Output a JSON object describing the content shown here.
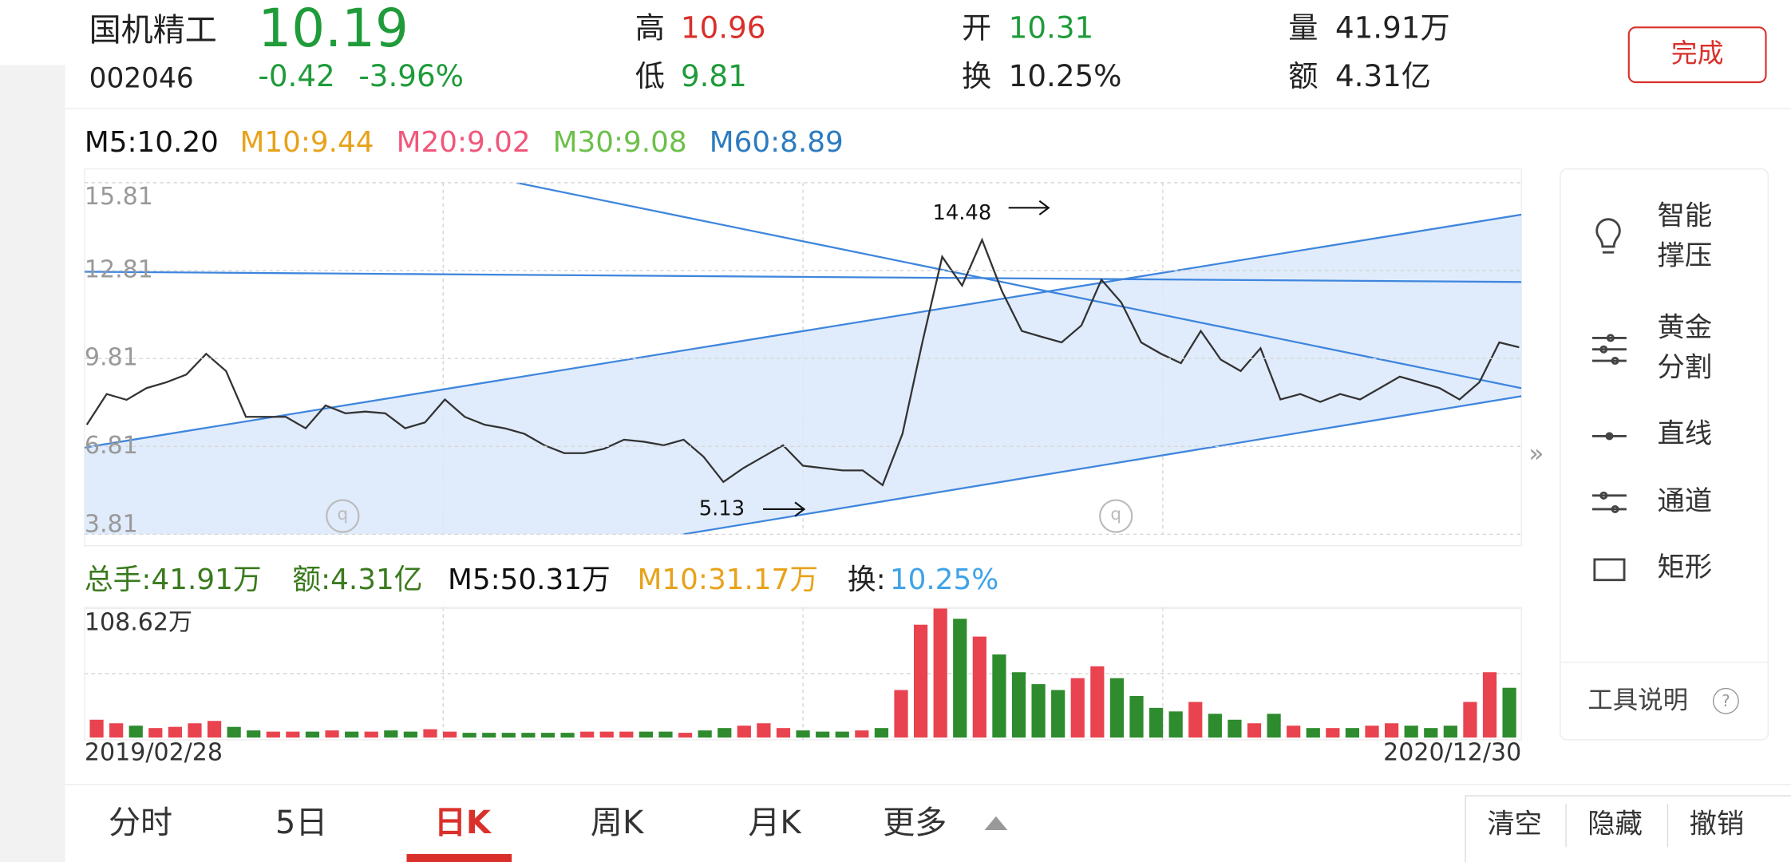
{
  "header": {
    "name": "国机精工",
    "code": "002046",
    "price": "10.19",
    "change": "-0.42",
    "change_pct": "-3.96%",
    "high_label": "高",
    "high": "10.96",
    "low_label": "低",
    "low": "9.81",
    "open_label": "开",
    "open": "10.31",
    "turnover_label": "换",
    "turnover": "10.25%",
    "volume_label": "量",
    "volume": "41.91万",
    "amount_label": "额",
    "amount": "4.31亿",
    "done_button": "完成"
  },
  "ma_legend": [
    {
      "text": "M5:10.20",
      "color": "#111111"
    },
    {
      "text": "M10:9.44",
      "color": "#e8a21a"
    },
    {
      "text": "M20:9.02",
      "color": "#f0577a"
    },
    {
      "text": "M30:9.08",
      "color": "#6cc04a"
    },
    {
      "text": "M60:8.89",
      "color": "#2d7bbf"
    }
  ],
  "volume_stats": [
    {
      "text": "总手:41.91万",
      "color": "#3a7a1e"
    },
    {
      "text": "额:4.31亿",
      "color": "#3a7a1e"
    },
    {
      "text": "M5:50.31万",
      "color": "#111111"
    },
    {
      "text": "M10:31.17万",
      "color": "#e8a21a"
    },
    {
      "text": "换:",
      "color": "#222222"
    },
    {
      "text": "10.25%",
      "color": "#3ea3e8"
    }
  ],
  "annotations": [
    "14.48",
    "5.13"
  ],
  "chart_data": [
    {
      "type": "line",
      "color": "#333333",
      "ylim": [
        3.81,
        15.81
      ],
      "yticks": [
        15.81,
        12.81,
        9.81,
        6.81,
        3.81
      ],
      "grid": true,
      "values": [
        7.55,
        8.6,
        8.4,
        8.8,
        9.0,
        9.26,
        9.97,
        9.38,
        7.82,
        7.82,
        7.82,
        7.43,
        8.21,
        7.94,
        8.0,
        7.94,
        7.43,
        7.63,
        8.41,
        7.82,
        7.55,
        7.43,
        7.24,
        6.85,
        6.58,
        6.58,
        6.73,
        7.04,
        6.97,
        6.85,
        7.04,
        6.46,
        5.6,
        6.07,
        6.46,
        6.85,
        6.15,
        6.07,
        5.99,
        5.99,
        5.49,
        7.24,
        10.36,
        13.28,
        12.3,
        13.86,
        12.11,
        10.75,
        10.55,
        10.36,
        10.94,
        12.5,
        11.72,
        10.36,
        9.97,
        9.65,
        10.75,
        9.77,
        9.38,
        10.16,
        8.41,
        8.6,
        8.33,
        8.6,
        8.41,
        8.8,
        9.19,
        9.0,
        8.8,
        8.41,
        9.0,
        10.36,
        10.19
      ]
    },
    {
      "type": "bar",
      "up_color": "#e8434f",
      "down_color": "#2e8b2e",
      "ylim": [
        0,
        108.62
      ],
      "yticks": [
        {
          "value": 108.62,
          "label": "108.62万"
        }
      ],
      "categories": [
        "2019/02/28",
        null,
        null,
        null,
        null,
        null,
        null,
        null,
        null,
        null,
        null,
        null,
        null,
        null,
        null,
        null,
        null,
        null,
        null,
        null,
        null,
        null,
        null,
        null,
        null,
        null,
        null,
        null,
        null,
        null,
        null,
        null,
        null,
        null,
        null,
        null,
        null,
        null,
        null,
        null,
        null,
        null,
        null,
        null,
        null,
        null,
        null,
        null,
        null,
        null,
        null,
        null,
        null,
        null,
        null,
        null,
        null,
        null,
        null,
        null,
        null,
        null,
        null,
        null,
        null,
        null,
        null,
        null,
        null,
        null,
        null,
        null,
        "2020/12/30"
      ],
      "values": [
        15,
        12,
        10,
        8,
        9,
        12,
        14,
        9,
        6,
        5,
        5,
        5,
        6,
        5,
        5,
        6,
        5,
        7,
        5,
        4,
        4,
        4,
        4,
        4,
        4,
        5,
        5,
        5,
        5,
        5,
        4,
        6,
        8,
        10,
        12,
        8,
        6,
        5,
        5,
        6,
        8,
        40,
        95,
        108.62,
        100,
        85,
        70,
        55,
        45,
        40,
        50,
        60,
        50,
        35,
        25,
        22,
        30,
        20,
        15,
        12,
        20,
        10,
        8,
        8,
        8,
        10,
        12,
        10,
        8,
        10,
        30,
        55,
        41.91
      ]
    }
  ],
  "tools": [
    {
      "lines": [
        "智能",
        "撑压"
      ]
    },
    {
      "lines": [
        "黄金",
        "分割"
      ]
    },
    {
      "lines": [
        "直线"
      ]
    },
    {
      "lines": [
        "通道"
      ]
    },
    {
      "lines": [
        "矩形"
      ]
    }
  ],
  "tool_help": "工具说明",
  "tabs": [
    "分时",
    "5日",
    "日K",
    "周K",
    "月K",
    "更多"
  ],
  "actions": [
    "清空",
    "隐藏",
    "撤销"
  ]
}
